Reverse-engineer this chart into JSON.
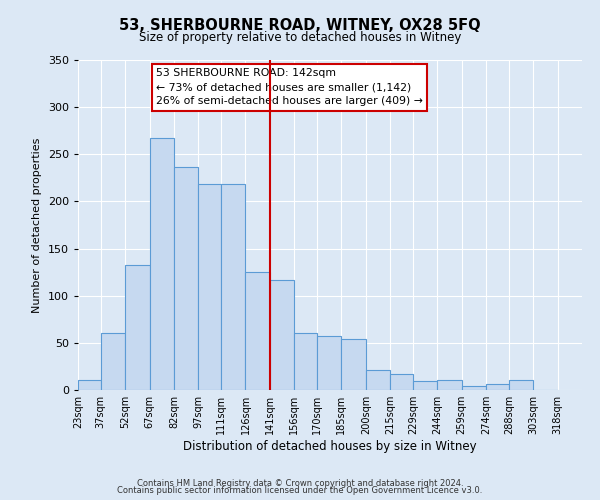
{
  "title": "53, SHERBOURNE ROAD, WITNEY, OX28 5FQ",
  "subtitle": "Size of property relative to detached houses in Witney",
  "xlabel": "Distribution of detached houses by size in Witney",
  "ylabel": "Number of detached properties",
  "bar_left_edges": [
    23,
    37,
    52,
    67,
    82,
    97,
    111,
    126,
    141,
    156,
    170,
    185,
    200,
    215,
    229,
    244,
    259,
    274,
    288,
    303
  ],
  "bar_heights": [
    11,
    60,
    133,
    267,
    236,
    219,
    219,
    125,
    117,
    60,
    57,
    54,
    21,
    17,
    10,
    11,
    4,
    6,
    11,
    0
  ],
  "bin_widths": [
    14,
    15,
    15,
    15,
    15,
    14,
    15,
    15,
    15,
    14,
    15,
    15,
    15,
    14,
    15,
    15,
    15,
    14,
    15,
    15
  ],
  "x_tick_labels": [
    "23sqm",
    "37sqm",
    "52sqm",
    "67sqm",
    "82sqm",
    "97sqm",
    "111sqm",
    "126sqm",
    "141sqm",
    "156sqm",
    "170sqm",
    "185sqm",
    "200sqm",
    "215sqm",
    "229sqm",
    "244sqm",
    "259sqm",
    "274sqm",
    "288sqm",
    "303sqm",
    "318sqm"
  ],
  "x_tick_positions": [
    23,
    37,
    52,
    67,
    82,
    97,
    111,
    126,
    141,
    156,
    170,
    185,
    200,
    215,
    229,
    244,
    259,
    274,
    288,
    303,
    318
  ],
  "xlim": [
    23,
    333
  ],
  "ylim": [
    0,
    350
  ],
  "yticks": [
    0,
    50,
    100,
    150,
    200,
    250,
    300,
    350
  ],
  "vline_x": 141,
  "vline_color": "#cc0000",
  "bar_fill_color": "#c6d9f0",
  "bar_edge_color": "#5b9bd5",
  "annotation_title": "53 SHERBOURNE ROAD: 142sqm",
  "annotation_line1": "← 73% of detached houses are smaller (1,142)",
  "annotation_line2": "26% of semi-detached houses are larger (409) →",
  "annotation_box_color": "#cc0000",
  "footer1": "Contains HM Land Registry data © Crown copyright and database right 2024.",
  "footer2": "Contains public sector information licensed under the Open Government Licence v3.0.",
  "background_color": "#dce8f5",
  "plot_bg_color": "#dce8f5",
  "title_fontsize": 10.5,
  "subtitle_fontsize": 8.5,
  "xlabel_fontsize": 8.5,
  "ylabel_fontsize": 8,
  "xtick_fontsize": 7,
  "ytick_fontsize": 8,
  "annotation_fontsize": 7.8,
  "footer_fontsize": 6
}
